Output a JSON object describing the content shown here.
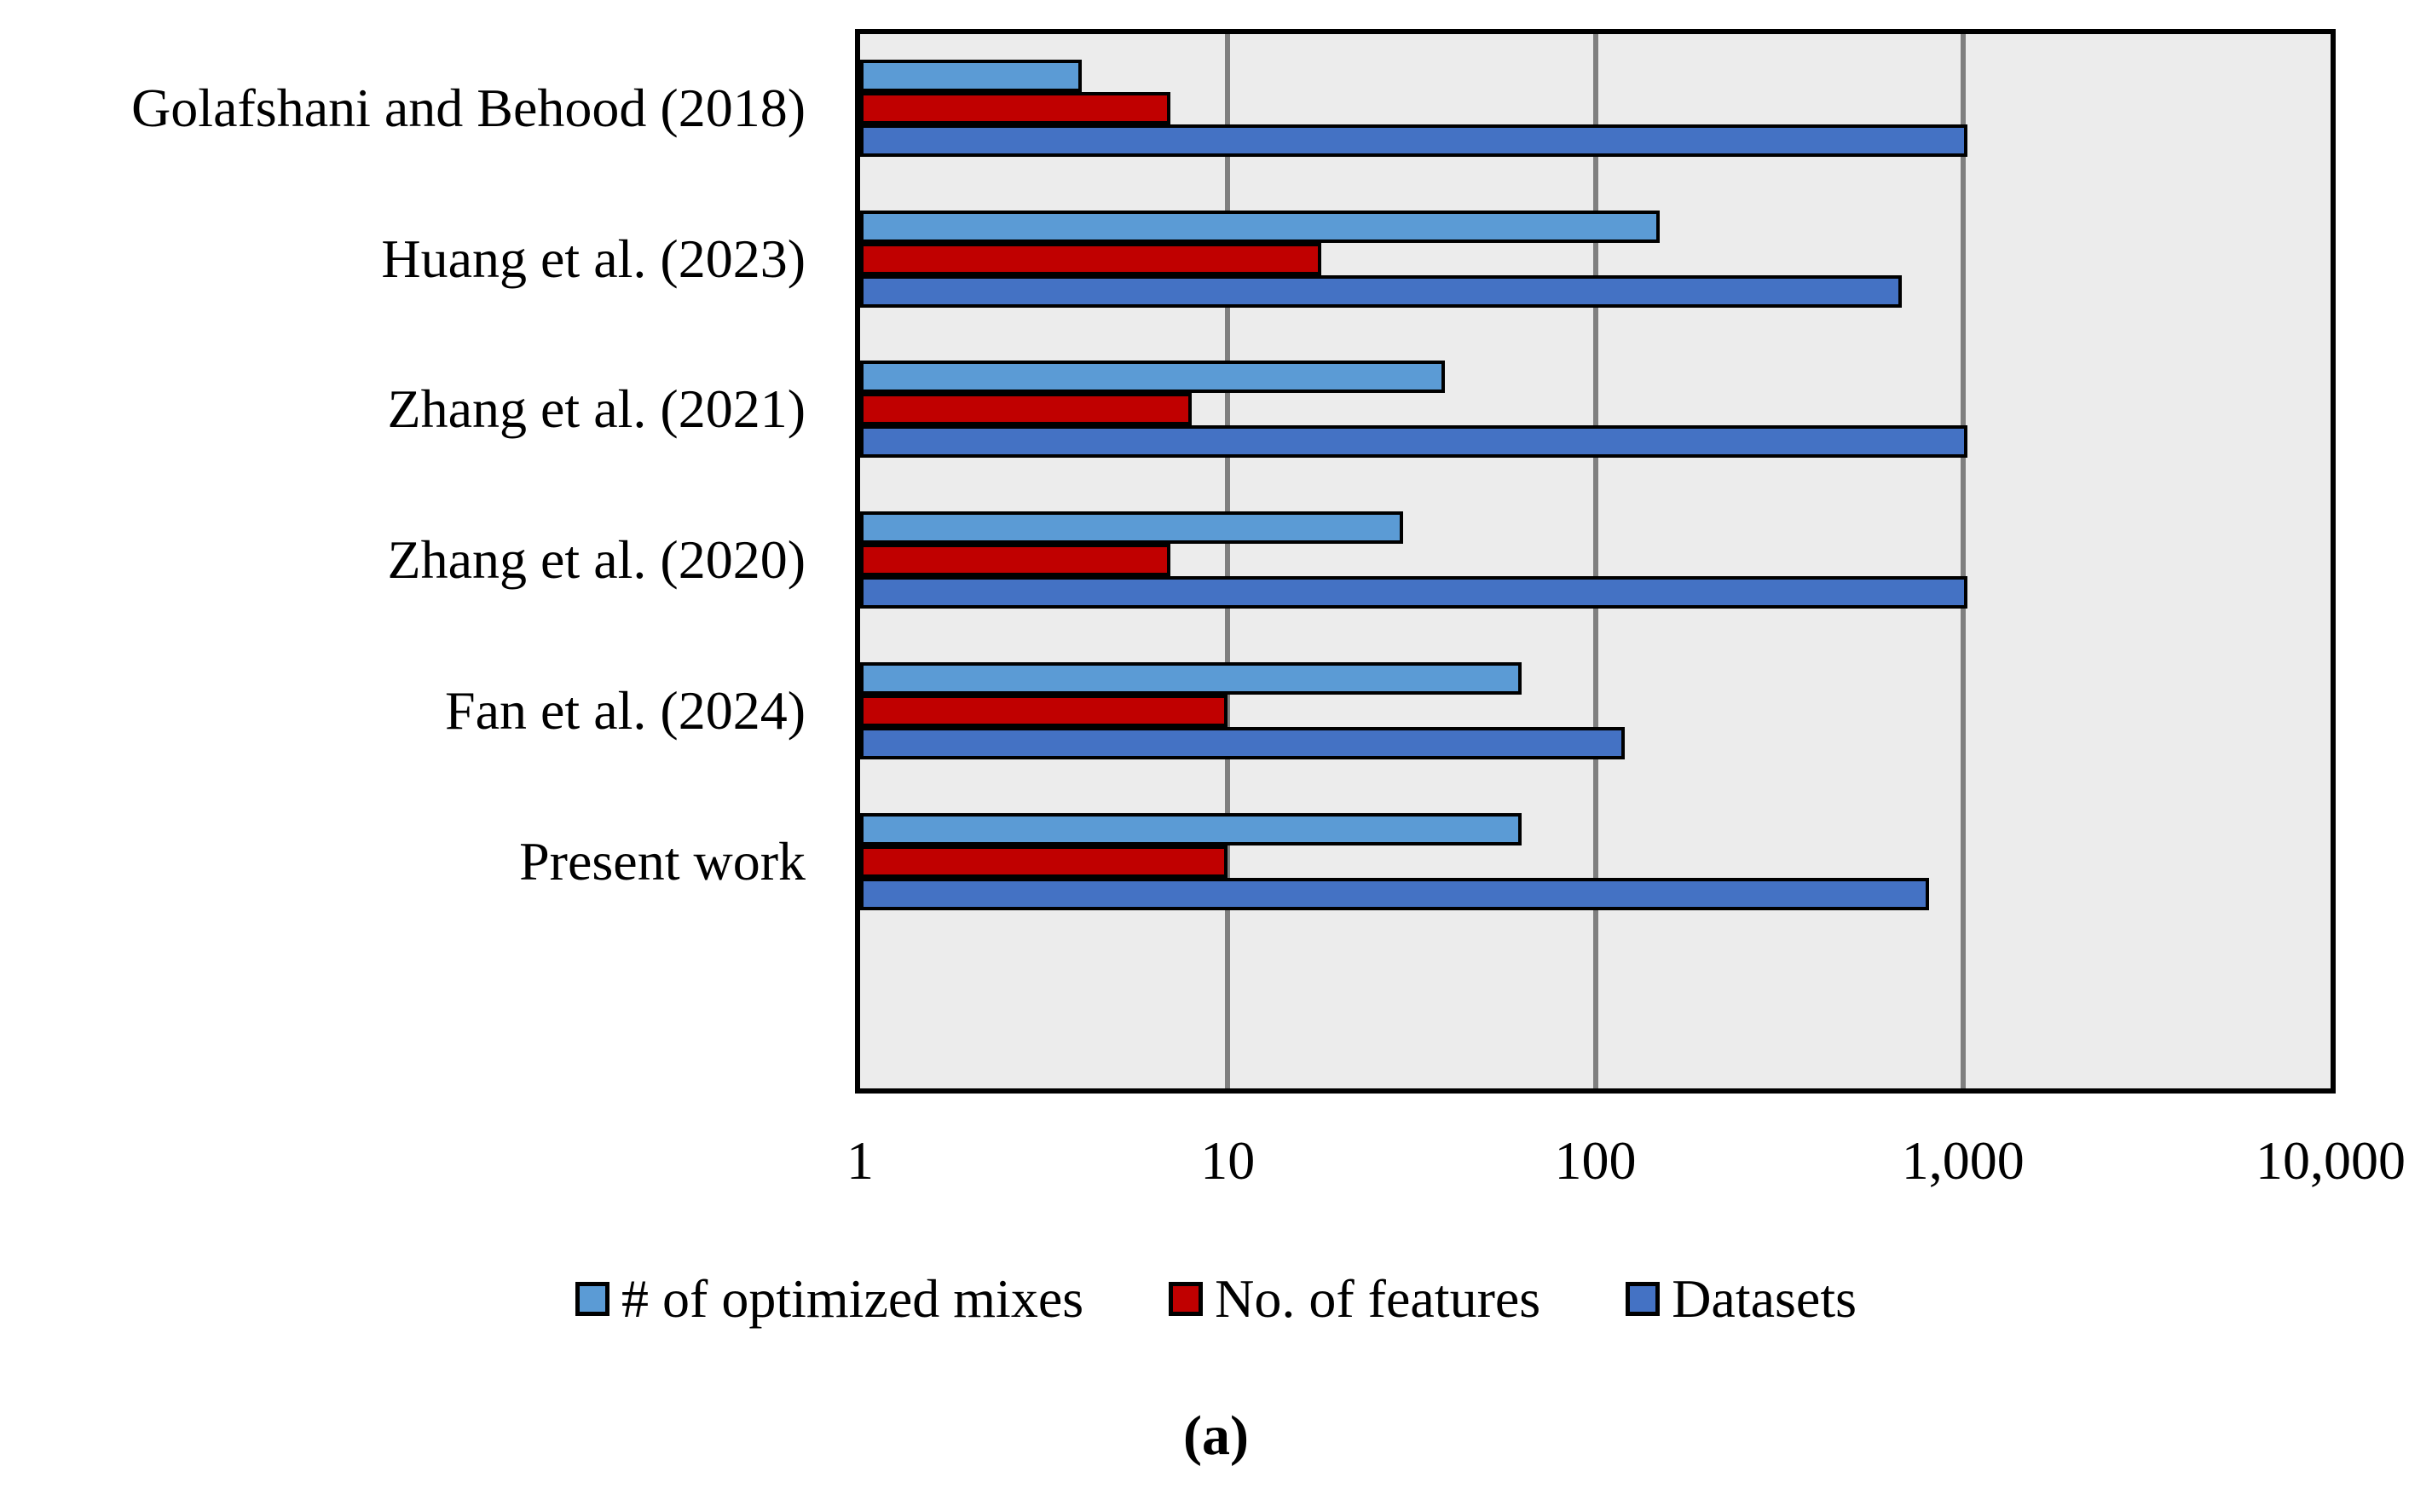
{
  "caption": "(a)",
  "chart_data": {
    "type": "bar",
    "orientation": "horizontal",
    "title": "",
    "xlabel": "",
    "ylabel": "",
    "x_scale": "log",
    "x_range": [
      1,
      10000
    ],
    "x_ticks": [
      "1",
      "10",
      "100",
      "1,000",
      "10,000"
    ],
    "grid": "vertical-major-gridlines",
    "legend_position": "bottom",
    "plot_background": "#ECECEC",
    "gridline_color": "#7F7F7F",
    "bar_border_color": "#000000",
    "categories": [
      "Golafshani and Behood (2018)",
      "Huang et al. (2023)",
      "Zhang et al. (2021)",
      "Zhang et al. (2020)",
      "Fan et al. (2024)",
      "Present work"
    ],
    "series": [
      {
        "name": "# of optimized mixes",
        "color": "#5B9BD5",
        "values": [
          4,
          150,
          39,
          30,
          63,
          63
        ]
      },
      {
        "name": "No. of features",
        "color": "#C00000",
        "values": [
          7,
          18,
          8,
          7,
          10,
          10
        ]
      },
      {
        "name": "Datasets",
        "color": "#4472C4",
        "values": [
          1030,
          680,
          1030,
          1030,
          120,
          810
        ]
      }
    ]
  }
}
